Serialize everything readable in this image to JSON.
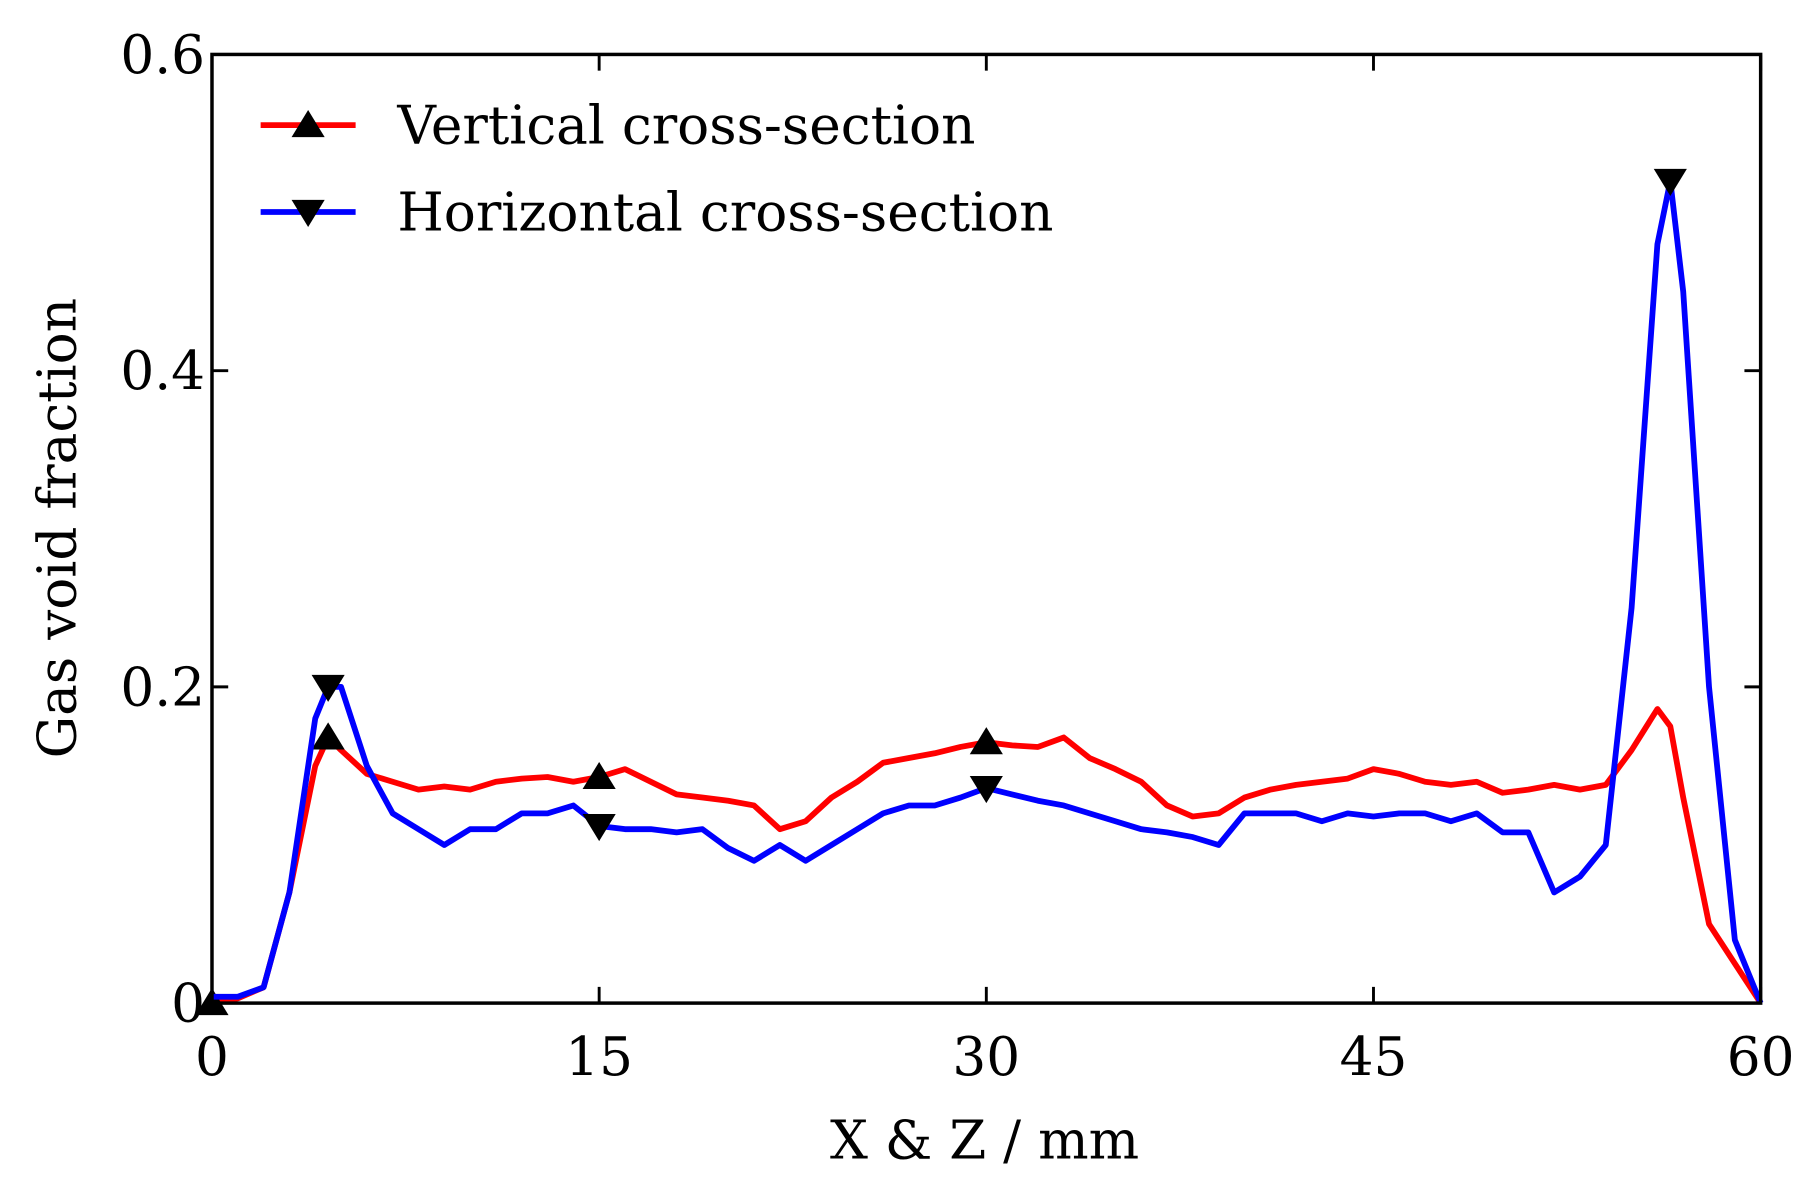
{
  "chart_data": {
    "type": "line",
    "xlabel": "X & Z / mm",
    "ylabel": "Gas void fraction",
    "xlim": [
      0,
      60
    ],
    "ylim": [
      0,
      0.6
    ],
    "xticks": [
      0,
      15,
      30,
      45,
      60
    ],
    "yticks": [
      0,
      0.2,
      0.4,
      0.6
    ],
    "legend": "upper left",
    "x": [
      0,
      1,
      2,
      3,
      4,
      4.5,
      5,
      6,
      7,
      8,
      9,
      10,
      11,
      12,
      13,
      14,
      15,
      16,
      17,
      18,
      19,
      20,
      21,
      22,
      23,
      24,
      25,
      26,
      27,
      28,
      29,
      30,
      31,
      32,
      33,
      34,
      35,
      36,
      37,
      38,
      39,
      40,
      41,
      42,
      43,
      44,
      45,
      46,
      47,
      48,
      49,
      50,
      51,
      52,
      53,
      54,
      55,
      56,
      56.5,
      57,
      58,
      59,
      60
    ],
    "series": [
      {
        "name": "Vertical cross-section",
        "color": "#ff0000",
        "marker": "^",
        "markevery": [
          0,
          5,
          16,
          31
        ],
        "values": [
          0,
          0.003,
          0.01,
          0.07,
          0.15,
          0.168,
          0.16,
          0.145,
          0.14,
          0.135,
          0.137,
          0.135,
          0.14,
          0.142,
          0.143,
          0.14,
          0.143,
          0.148,
          0.14,
          0.132,
          0.13,
          0.128,
          0.125,
          0.11,
          0.115,
          0.13,
          0.14,
          0.152,
          0.155,
          0.158,
          0.162,
          0.165,
          0.163,
          0.162,
          0.168,
          0.155,
          0.148,
          0.14,
          0.125,
          0.118,
          0.12,
          0.13,
          0.135,
          0.138,
          0.14,
          0.142,
          0.148,
          0.145,
          0.14,
          0.138,
          0.14,
          0.133,
          0.135,
          0.138,
          0.135,
          0.138,
          0.16,
          0.186,
          0.175,
          0.13,
          0.05,
          0.025,
          0
        ]
      },
      {
        "name": "Horizontal cross-section",
        "color": "#0000ff",
        "marker": "v",
        "markevery": [
          5,
          16,
          31,
          58
        ],
        "values": [
          0.004,
          0.004,
          0.01,
          0.07,
          0.18,
          0.2,
          0.2,
          0.15,
          0.12,
          0.11,
          0.1,
          0.11,
          0.11,
          0.12,
          0.12,
          0.125,
          0.112,
          0.11,
          0.11,
          0.108,
          0.11,
          0.098,
          0.09,
          0.1,
          0.09,
          0.1,
          0.11,
          0.12,
          0.125,
          0.125,
          0.13,
          0.136,
          0.132,
          0.128,
          0.125,
          0.12,
          0.115,
          0.11,
          0.108,
          0.105,
          0.1,
          0.12,
          0.12,
          0.12,
          0.115,
          0.12,
          0.118,
          0.12,
          0.12,
          0.115,
          0.12,
          0.108,
          0.108,
          0.07,
          0.08,
          0.1,
          0.25,
          0.48,
          0.52,
          0.45,
          0.2,
          0.04,
          0
        ]
      }
    ]
  }
}
